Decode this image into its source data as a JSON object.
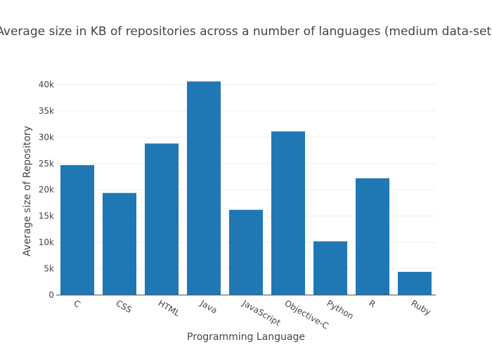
{
  "colors": {
    "bar": "#1f77b4",
    "grid": "#eeeeee",
    "axis": "#444444",
    "background": "#ffffff"
  },
  "chart_data": {
    "type": "bar",
    "title": "Average size in KB of repositories across a number of languages (medium data-set)",
    "xlabel": "Programming Language",
    "ylabel": "Average size of Repository",
    "categories": [
      "C",
      "CSS",
      "HTML",
      "Java",
      "JavaScript",
      "Objective-C",
      "Python",
      "R",
      "Ruby"
    ],
    "values": [
      24700,
      19400,
      28800,
      40600,
      16200,
      31100,
      10200,
      22200,
      4400
    ],
    "ylim": [
      0,
      40600
    ],
    "yticks": [
      0,
      5000,
      10000,
      15000,
      20000,
      25000,
      30000,
      35000,
      40000
    ],
    "ytick_labels": [
      "0",
      "5k",
      "10k",
      "15k",
      "20k",
      "25k",
      "30k",
      "35k",
      "40k"
    ],
    "grid": true,
    "legend": "none"
  }
}
